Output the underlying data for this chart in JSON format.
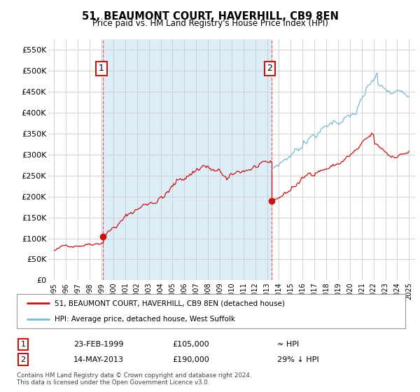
{
  "title": "51, BEAUMONT COURT, HAVERHILL, CB9 8EN",
  "subtitle": "Price paid vs. HM Land Registry's House Price Index (HPI)",
  "legend_line1": "51, BEAUMONT COURT, HAVERHILL, CB9 8EN (detached house)",
  "legend_line2": "HPI: Average price, detached house, West Suffolk",
  "annotation1_date": "23-FEB-1999",
  "annotation1_price": "£105,000",
  "annotation1_hpi": "≈ HPI",
  "annotation2_date": "14-MAY-2013",
  "annotation2_price": "£190,000",
  "annotation2_hpi": "29% ↓ HPI",
  "footer": "Contains HM Land Registry data © Crown copyright and database right 2024.\nThis data is licensed under the Open Government Licence v3.0.",
  "sale1_year": 1999.14,
  "sale1_price": 105000,
  "sale2_year": 2013.37,
  "sale2_price": 190000,
  "ylim_min": 0,
  "ylim_max": 575000,
  "xlim_min": 1994.5,
  "xlim_max": 2025.5,
  "hpi_color": "#7ab8d9",
  "sale_color": "#cc1111",
  "vline_color": "#ee4444",
  "grid_color": "#cccccc",
  "shade_color": "#ddeef8",
  "background_color": "#ffffff",
  "plot_bg_color": "#ffffff",
  "ann_box_color": "#cc1111"
}
